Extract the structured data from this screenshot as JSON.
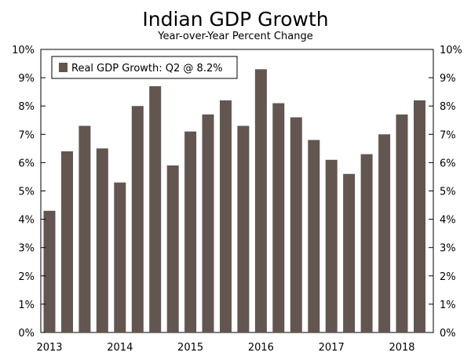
{
  "chart_data": {
    "type": "bar",
    "title": "Indian GDP Growth",
    "subtitle": "Year-over-Year Percent Change",
    "xlabel": "",
    "ylabel": "",
    "ylim": [
      0,
      10
    ],
    "y_ticks": [
      "0%",
      "1%",
      "2%",
      "3%",
      "4%",
      "5%",
      "6%",
      "7%",
      "8%",
      "9%",
      "10%"
    ],
    "x_tick_labels": [
      {
        "label": "2013",
        "at_bar": 0
      },
      {
        "label": "2014",
        "at_bar": 4
      },
      {
        "label": "2015",
        "at_bar": 8
      },
      {
        "label": "2016",
        "at_bar": 12
      },
      {
        "label": "2017",
        "at_bar": 16
      },
      {
        "label": "2018",
        "at_bar": 20
      }
    ],
    "categories": [
      "2013 Q1",
      "2013 Q2",
      "2013 Q3",
      "2013 Q4",
      "2014 Q1",
      "2014 Q2",
      "2014 Q3",
      "2014 Q4",
      "2015 Q1",
      "2015 Q2",
      "2015 Q3",
      "2015 Q4",
      "2016 Q1",
      "2016 Q2",
      "2016 Q3",
      "2016 Q4",
      "2017 Q1",
      "2017 Q2",
      "2017 Q3",
      "2017 Q4",
      "2018 Q1",
      "2018 Q2"
    ],
    "series": [
      {
        "name": "Real GDP Growth: Q2 @ 8.2%",
        "color": "#635650",
        "values": [
          4.3,
          6.4,
          7.3,
          6.5,
          5.3,
          8.0,
          8.7,
          5.9,
          7.1,
          7.7,
          8.2,
          7.3,
          9.3,
          8.1,
          7.6,
          6.8,
          6.1,
          5.6,
          6.3,
          7.0,
          7.7,
          8.2
        ]
      }
    ],
    "legend": "top-left"
  }
}
